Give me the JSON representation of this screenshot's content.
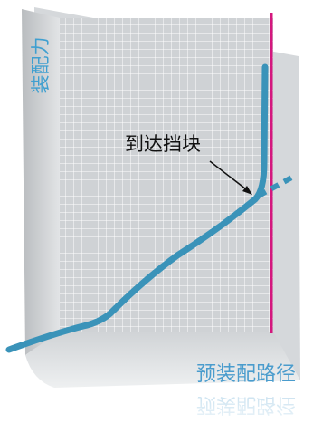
{
  "diagram": {
    "y_axis_label": "装配力",
    "x_axis_label": "预装配路径",
    "annotation": "到达挡块"
  }
}
